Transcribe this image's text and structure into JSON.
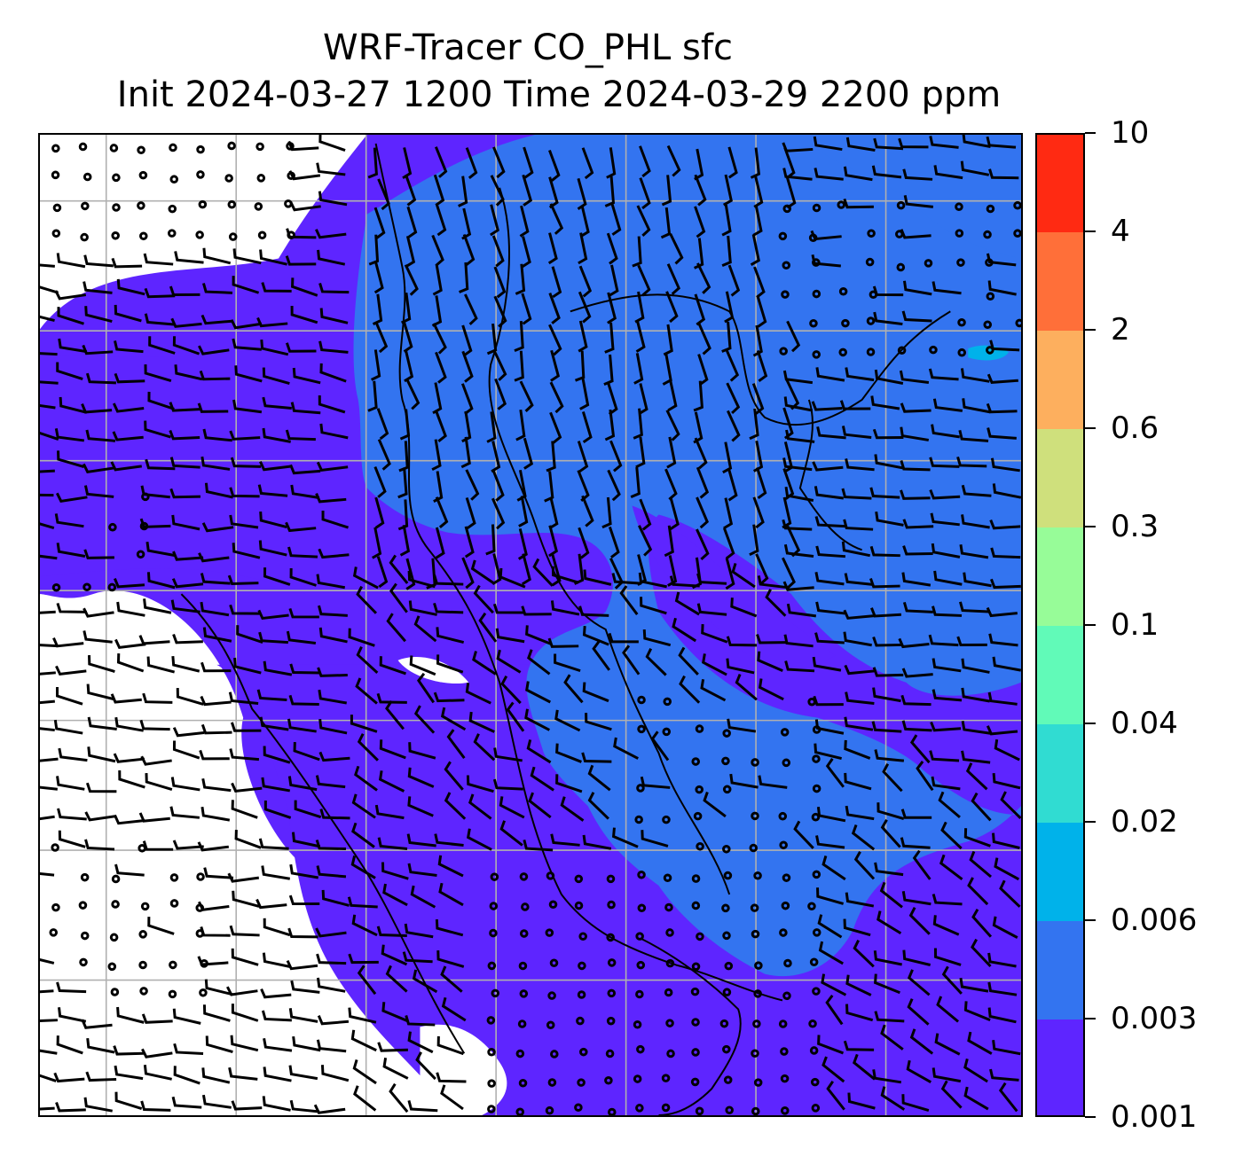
{
  "title": {
    "line1": "WRF-Tracer CO_PHL sfc",
    "line2": "Init 2024-03-27 1200 Time 2024-03-29 2200 ppm"
  },
  "colorbar": {
    "levels": [
      "0.001",
      "0.003",
      "0.006",
      "0.02",
      "0.04",
      "0.1",
      "0.3",
      "0.6",
      "2",
      "4",
      "10"
    ],
    "colors": [
      "#5e25ff",
      "#3374f0",
      "#00b2ea",
      "#30dcd2",
      "#61fab8",
      "#97fc98",
      "#cfe07c",
      "#fdaf5e",
      "#ff6f39",
      "#ff2a12"
    ]
  },
  "map": {
    "grid_color": "#b0b0b0",
    "barb_color": "#000000",
    "regions": [
      "none",
      "0.001-0.003",
      "0.003-0.006",
      "0.006-0.02"
    ]
  }
}
